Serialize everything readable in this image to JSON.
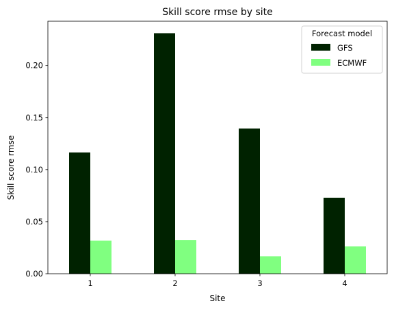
{
  "chart_data": {
    "type": "bar",
    "title": "Skill score rmse by site",
    "xlabel": "Site",
    "ylabel": "Skill score rmse",
    "categories": [
      "1",
      "2",
      "3",
      "4"
    ],
    "series": [
      {
        "name": "GFS",
        "color": "#002200",
        "values": [
          0.1165,
          0.231,
          0.1395,
          0.073
        ]
      },
      {
        "name": "ECMWF",
        "color": "#80ff80",
        "values": [
          0.0318,
          0.0322,
          0.0168,
          0.0262
        ]
      }
    ],
    "ylim": [
      0,
      0.2425
    ],
    "yticks": [
      0.0,
      0.05,
      0.1,
      0.15,
      0.2
    ],
    "ytick_labels": [
      "0.00",
      "0.05",
      "0.10",
      "0.15",
      "0.20"
    ],
    "grid": false,
    "legend": {
      "title": "Forecast model",
      "position": "top-right"
    }
  }
}
